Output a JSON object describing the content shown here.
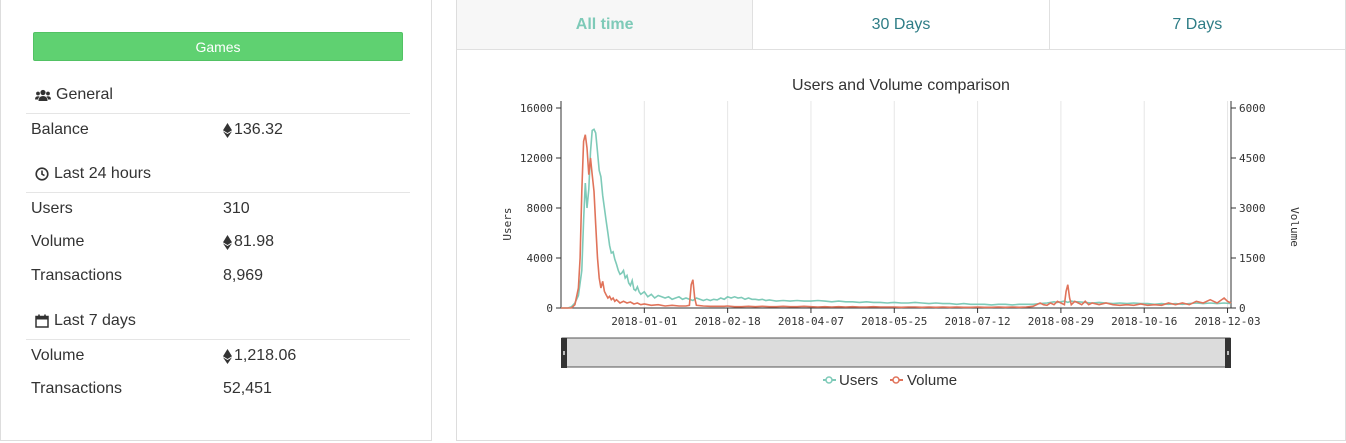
{
  "left": {
    "games_button": "Games",
    "general": {
      "heading": "General",
      "rows": [
        {
          "label": "Balance",
          "value": "136.32",
          "eth": true
        }
      ]
    },
    "last24": {
      "heading": "Last 24 hours",
      "rows": [
        {
          "label": "Users",
          "value": "310",
          "eth": false
        },
        {
          "label": "Volume",
          "value": "81.98",
          "eth": true
        },
        {
          "label": "Transactions",
          "value": "8,969",
          "eth": false
        }
      ]
    },
    "last7": {
      "heading": "Last 7 days",
      "rows": [
        {
          "label": "Volume",
          "value": "1,218.06",
          "eth": true
        },
        {
          "label": "Transactions",
          "value": "52,451",
          "eth": false
        }
      ]
    }
  },
  "tabs": [
    {
      "label": "All time",
      "active": true
    },
    {
      "label": "30 Days",
      "active": false
    },
    {
      "label": "7 Days",
      "active": false
    }
  ],
  "colors": {
    "users": "#7ecab8",
    "volume": "#e0735a",
    "button": "#5fd171",
    "tab_text": "#2e7d86"
  },
  "chart_data": {
    "type": "line",
    "title": "Users and Volume comparison",
    "xlabel": "",
    "ylabel": "Users",
    "y2label": "Volume",
    "x_ticks": [
      "2018-01-01",
      "2018-02-18",
      "2018-04-07",
      "2018-05-25",
      "2018-07-12",
      "2018-08-29",
      "2018-10-16",
      "2018-12-03"
    ],
    "x_tick_days": [
      0,
      48,
      96,
      144,
      192,
      240,
      288,
      336
    ],
    "xlim": [
      -48,
      338
    ],
    "ylim": [
      0,
      16000
    ],
    "y_ticks": [
      "0",
      "4000",
      "8000",
      "12000",
      "16000"
    ],
    "y2lim": [
      0,
      6000
    ],
    "y2_ticks": [
      "0",
      "1500",
      "3000",
      "4500",
      "6000"
    ],
    "legend": [
      "Users",
      "Volume"
    ],
    "legend_position": "bottom",
    "series": [
      {
        "name": "Users",
        "axis": "left",
        "points": [
          [
            -48,
            0
          ],
          [
            -44,
            0
          ],
          [
            -42,
            100
          ],
          [
            -40,
            400
          ],
          [
            -38,
            1000
          ],
          [
            -36,
            3000
          ],
          [
            -35,
            7000
          ],
          [
            -34,
            10000
          ],
          [
            -33,
            8000
          ],
          [
            -32,
            9500
          ],
          [
            -31,
            12500
          ],
          [
            -30,
            14200
          ],
          [
            -29,
            14300
          ],
          [
            -28,
            14000
          ],
          [
            -27,
            12500
          ],
          [
            -26,
            11000
          ],
          [
            -25,
            10500
          ],
          [
            -24,
            9000
          ],
          [
            -23,
            8000
          ],
          [
            -22,
            7000
          ],
          [
            -21,
            6000
          ],
          [
            -20,
            5000
          ],
          [
            -19,
            4400
          ],
          [
            -18,
            4500
          ],
          [
            -17,
            3900
          ],
          [
            -16,
            3500
          ],
          [
            -15,
            3000
          ],
          [
            -14,
            2700
          ],
          [
            -13,
            2800
          ],
          [
            -12,
            3000
          ],
          [
            -11,
            2400
          ],
          [
            -10,
            2600
          ],
          [
            -9,
            2000
          ],
          [
            -8,
            1800
          ],
          [
            -7,
            2200
          ],
          [
            -6,
            1500
          ],
          [
            -5,
            1400
          ],
          [
            -4,
            1700
          ],
          [
            -3,
            1300
          ],
          [
            -2,
            1100
          ],
          [
            -1,
            1200
          ],
          [
            0,
            1300
          ],
          [
            2,
            900
          ],
          [
            4,
            1100
          ],
          [
            6,
            800
          ],
          [
            8,
            1000
          ],
          [
            10,
            900
          ],
          [
            12,
            800
          ],
          [
            14,
            900
          ],
          [
            16,
            700
          ],
          [
            18,
            800
          ],
          [
            20,
            900
          ],
          [
            22,
            700
          ],
          [
            24,
            800
          ],
          [
            26,
            700
          ],
          [
            28,
            600
          ],
          [
            30,
            800
          ],
          [
            32,
            700
          ],
          [
            34,
            600
          ],
          [
            36,
            700
          ],
          [
            38,
            600
          ],
          [
            40,
            700
          ],
          [
            42,
            650
          ],
          [
            44,
            800
          ],
          [
            46,
            700
          ],
          [
            48,
            900
          ],
          [
            50,
            800
          ],
          [
            52,
            900
          ],
          [
            54,
            800
          ],
          [
            56,
            850
          ],
          [
            58,
            700
          ],
          [
            60,
            800
          ],
          [
            62,
            700
          ],
          [
            64,
            700
          ],
          [
            66,
            650
          ],
          [
            68,
            700
          ],
          [
            70,
            600
          ],
          [
            72,
            650
          ],
          [
            74,
            600
          ],
          [
            76,
            550
          ],
          [
            80,
            600
          ],
          [
            84,
            550
          ],
          [
            88,
            600
          ],
          [
            92,
            550
          ],
          [
            96,
            550
          ],
          [
            100,
            600
          ],
          [
            104,
            550
          ],
          [
            108,
            500
          ],
          [
            112,
            550
          ],
          [
            116,
            500
          ],
          [
            120,
            500
          ],
          [
            124,
            450
          ],
          [
            128,
            500
          ],
          [
            132,
            450
          ],
          [
            136,
            450
          ],
          [
            140,
            400
          ],
          [
            144,
            450
          ],
          [
            148,
            400
          ],
          [
            152,
            400
          ],
          [
            156,
            450
          ],
          [
            160,
            400
          ],
          [
            164,
            350
          ],
          [
            168,
            400
          ],
          [
            172,
            350
          ],
          [
            176,
            350
          ],
          [
            180,
            300
          ],
          [
            184,
            350
          ],
          [
            188,
            300
          ],
          [
            192,
            300
          ],
          [
            196,
            300
          ],
          [
            200,
            250
          ],
          [
            204,
            300
          ],
          [
            208,
            300
          ],
          [
            212,
            250
          ],
          [
            216,
            300
          ],
          [
            220,
            300
          ],
          [
            224,
            300
          ],
          [
            228,
            350
          ],
          [
            232,
            400
          ],
          [
            236,
            500
          ],
          [
            238,
            450
          ],
          [
            240,
            500
          ],
          [
            242,
            550
          ],
          [
            244,
            450
          ],
          [
            246,
            550
          ],
          [
            248,
            500
          ],
          [
            250,
            500
          ],
          [
            254,
            450
          ],
          [
            258,
            400
          ],
          [
            262,
            450
          ],
          [
            266,
            400
          ],
          [
            270,
            350
          ],
          [
            274,
            400
          ],
          [
            278,
            350
          ],
          [
            282,
            400
          ],
          [
            286,
            350
          ],
          [
            290,
            350
          ],
          [
            294,
            300
          ],
          [
            298,
            350
          ],
          [
            302,
            300
          ],
          [
            306,
            350
          ],
          [
            310,
            300
          ],
          [
            314,
            350
          ],
          [
            318,
            400
          ],
          [
            322,
            350
          ],
          [
            326,
            400
          ],
          [
            330,
            350
          ],
          [
            334,
            400
          ],
          [
            338,
            350
          ]
        ]
      },
      {
        "name": "Volume",
        "axis": "right",
        "points": [
          [
            -48,
            0
          ],
          [
            -42,
            0
          ],
          [
            -40,
            100
          ],
          [
            -38,
            600
          ],
          [
            -37,
            1500
          ],
          [
            -36,
            3500
          ],
          [
            -35,
            5000
          ],
          [
            -34,
            5200
          ],
          [
            -33,
            4800
          ],
          [
            -32,
            4000
          ],
          [
            -31,
            4500
          ],
          [
            -30,
            4000
          ],
          [
            -29,
            3500
          ],
          [
            -28,
            2500
          ],
          [
            -27,
            1500
          ],
          [
            -26,
            900
          ],
          [
            -25,
            600
          ],
          [
            -24,
            800
          ],
          [
            -23,
            500
          ],
          [
            -22,
            400
          ],
          [
            -21,
            300
          ],
          [
            -20,
            350
          ],
          [
            -19,
            250
          ],
          [
            -18,
            300
          ],
          [
            -17,
            200
          ],
          [
            -16,
            250
          ],
          [
            -14,
            150
          ],
          [
            -12,
            200
          ],
          [
            -10,
            150
          ],
          [
            -8,
            180
          ],
          [
            -6,
            120
          ],
          [
            -4,
            150
          ],
          [
            -2,
            100
          ],
          [
            0,
            120
          ],
          [
            4,
            80
          ],
          [
            8,
            100
          ],
          [
            12,
            60
          ],
          [
            16,
            80
          ],
          [
            20,
            60
          ],
          [
            24,
            60
          ],
          [
            26,
            80
          ],
          [
            27,
            700
          ],
          [
            28,
            850
          ],
          [
            29,
            300
          ],
          [
            30,
            80
          ],
          [
            34,
            60
          ],
          [
            38,
            50
          ],
          [
            42,
            50
          ],
          [
            46,
            50
          ],
          [
            48,
            60
          ],
          [
            52,
            40
          ],
          [
            56,
            40
          ],
          [
            60,
            50
          ],
          [
            64,
            40
          ],
          [
            68,
            50
          ],
          [
            72,
            40
          ],
          [
            76,
            40
          ],
          [
            80,
            50
          ],
          [
            84,
            40
          ],
          [
            88,
            40
          ],
          [
            92,
            50
          ],
          [
            96,
            40
          ],
          [
            100,
            30
          ],
          [
            104,
            40
          ],
          [
            108,
            30
          ],
          [
            112,
            40
          ],
          [
            116,
            30
          ],
          [
            120,
            40
          ],
          [
            124,
            30
          ],
          [
            128,
            30
          ],
          [
            132,
            40
          ],
          [
            136,
            30
          ],
          [
            140,
            30
          ],
          [
            144,
            30
          ],
          [
            148,
            20
          ],
          [
            152,
            30
          ],
          [
            156,
            30
          ],
          [
            160,
            20
          ],
          [
            164,
            30
          ],
          [
            168,
            20
          ],
          [
            172,
            30
          ],
          [
            176,
            20
          ],
          [
            180,
            30
          ],
          [
            184,
            20
          ],
          [
            188,
            20
          ],
          [
            192,
            30
          ],
          [
            196,
            20
          ],
          [
            200,
            20
          ],
          [
            204,
            30
          ],
          [
            208,
            20
          ],
          [
            212,
            30
          ],
          [
            216,
            20
          ],
          [
            220,
            30
          ],
          [
            224,
            50
          ],
          [
            228,
            150
          ],
          [
            230,
            100
          ],
          [
            232,
            80
          ],
          [
            234,
            150
          ],
          [
            236,
            100
          ],
          [
            238,
            200
          ],
          [
            240,
            150
          ],
          [
            242,
            100
          ],
          [
            243,
            500
          ],
          [
            244,
            700
          ],
          [
            245,
            300
          ],
          [
            246,
            100
          ],
          [
            248,
            200
          ],
          [
            250,
            150
          ],
          [
            252,
            100
          ],
          [
            254,
            200
          ],
          [
            256,
            100
          ],
          [
            258,
            150
          ],
          [
            262,
            100
          ],
          [
            266,
            150
          ],
          [
            270,
            100
          ],
          [
            274,
            80
          ],
          [
            278,
            100
          ],
          [
            282,
            80
          ],
          [
            286,
            120
          ],
          [
            290,
            80
          ],
          [
            294,
            100
          ],
          [
            298,
            80
          ],
          [
            302,
            150
          ],
          [
            306,
            100
          ],
          [
            310,
            150
          ],
          [
            314,
            100
          ],
          [
            318,
            200
          ],
          [
            322,
            150
          ],
          [
            326,
            250
          ],
          [
            330,
            150
          ],
          [
            334,
            300
          ],
          [
            336,
            200
          ],
          [
            338,
            150
          ]
        ]
      }
    ]
  }
}
